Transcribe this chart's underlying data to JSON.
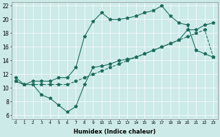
{
  "xlabel": "Humidex (Indice chaleur)",
  "xlim": [
    -0.5,
    23.5
  ],
  "ylim": [
    5.5,
    22.5
  ],
  "xticks": [
    0,
    1,
    2,
    3,
    4,
    5,
    6,
    7,
    8,
    9,
    10,
    11,
    12,
    13,
    14,
    15,
    16,
    17,
    18,
    19,
    20,
    21,
    22,
    23
  ],
  "yticks": [
    6,
    8,
    10,
    12,
    14,
    16,
    18,
    20,
    22
  ],
  "bg_color": "#cceae8",
  "line_color": "#1a6b5a",
  "line_upper_x": [
    0,
    1,
    2,
    3,
    4,
    5,
    6,
    7,
    8,
    9,
    10,
    11,
    12,
    13,
    14,
    15,
    16,
    17,
    18,
    19,
    20,
    21,
    22,
    23
  ],
  "line_upper_y": [
    11.5,
    10.5,
    11.0,
    11.0,
    11.0,
    11.5,
    11.5,
    13.0,
    17.5,
    19.7,
    21.0,
    20.0,
    20.0,
    20.2,
    20.5,
    21.0,
    21.3,
    22.0,
    20.5,
    19.5,
    19.2,
    15.5,
    15.0,
    14.5
  ],
  "line_lower_x": [
    0,
    1,
    2,
    3,
    4,
    5,
    6,
    7,
    8,
    9,
    10,
    11,
    12,
    13,
    14,
    15,
    16,
    17,
    18,
    19,
    20,
    21,
    22,
    23
  ],
  "line_lower_y": [
    11.0,
    10.5,
    10.5,
    9.0,
    8.5,
    7.5,
    6.5,
    7.3,
    10.5,
    13.0,
    13.2,
    13.5,
    14.0,
    14.2,
    14.5,
    15.0,
    15.5,
    16.0,
    16.5,
    17.0,
    18.5,
    18.5,
    19.2,
    19.5
  ],
  "line_diag_x": [
    0,
    1,
    2,
    3,
    4,
    5,
    6,
    7,
    8,
    9,
    10,
    11,
    12,
    13,
    14,
    15,
    16,
    17,
    18,
    19,
    20,
    21,
    22,
    23
  ],
  "line_diag_y": [
    11.0,
    10.5,
    10.5,
    10.5,
    10.5,
    10.5,
    10.5,
    11.0,
    11.5,
    12.0,
    12.5,
    13.0,
    13.5,
    14.0,
    14.5,
    15.0,
    15.5,
    16.0,
    16.5,
    17.0,
    17.5,
    18.0,
    18.5,
    14.5
  ]
}
